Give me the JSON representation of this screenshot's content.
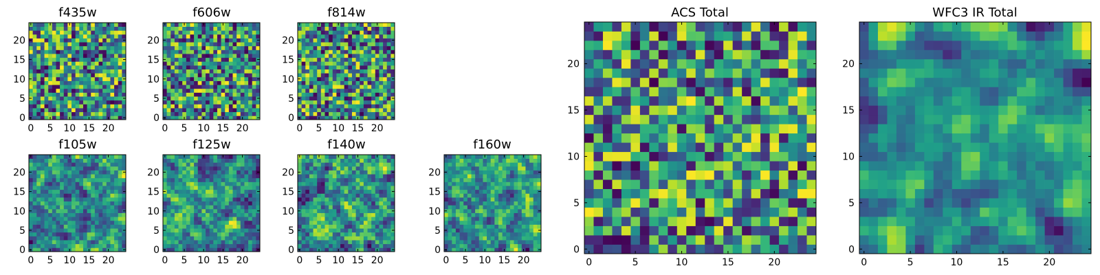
{
  "chart_data": [
    {
      "type": "heatmap",
      "title": "f435w",
      "size": 25,
      "seed": 11,
      "smooth": 0,
      "xticks": [
        0,
        5,
        10,
        15,
        20
      ],
      "yticks": [
        0,
        5,
        10,
        15,
        20
      ]
    },
    {
      "type": "heatmap",
      "title": "f606w",
      "size": 25,
      "seed": 23,
      "smooth": 0,
      "xticks": [
        0,
        5,
        10,
        15,
        20
      ],
      "yticks": [
        0,
        5,
        10,
        15,
        20
      ]
    },
    {
      "type": "heatmap",
      "title": "f814w",
      "size": 25,
      "seed": 37,
      "smooth": 0,
      "xticks": [
        0,
        5,
        10,
        15,
        20
      ],
      "yticks": [
        0,
        5,
        10,
        15,
        20
      ]
    },
    {
      "type": "heatmap",
      "title": "f105w",
      "size": 25,
      "seed": 41,
      "smooth": 1,
      "xticks": [
        0,
        5,
        10,
        15,
        20
      ],
      "yticks": [
        0,
        5,
        10,
        15,
        20
      ]
    },
    {
      "type": "heatmap",
      "title": "f125w",
      "size": 25,
      "seed": 53,
      "smooth": 1,
      "xticks": [
        0,
        5,
        10,
        15,
        20
      ],
      "yticks": [
        0,
        5,
        10,
        15,
        20
      ]
    },
    {
      "type": "heatmap",
      "title": "f140w",
      "size": 25,
      "seed": 67,
      "smooth": 1,
      "xticks": [
        0,
        5,
        10,
        15,
        20
      ],
      "yticks": [
        0,
        5,
        10,
        15,
        20
      ]
    },
    {
      "type": "heatmap",
      "title": "f160w",
      "size": 25,
      "seed": 79,
      "smooth": 1,
      "xticks": [
        0,
        5,
        10,
        15,
        20
      ],
      "yticks": [
        0,
        5,
        10,
        15,
        20
      ]
    },
    {
      "type": "heatmap",
      "title": "ACS Total",
      "size": 25,
      "seed": 97,
      "smooth": 0,
      "xticks": [
        0,
        5,
        10,
        15,
        20
      ],
      "yticks": [
        0,
        5,
        10,
        15,
        20
      ]
    },
    {
      "type": "heatmap",
      "title": "WFC3 IR Total",
      "size": 25,
      "seed": 113,
      "smooth": 2,
      "xticks": [
        0,
        5,
        10,
        15,
        20
      ],
      "yticks": [
        0,
        5,
        10,
        15,
        20
      ]
    }
  ],
  "colormap": "viridis",
  "colors": {
    "axes": "#000000",
    "background": "#ffffff"
  }
}
